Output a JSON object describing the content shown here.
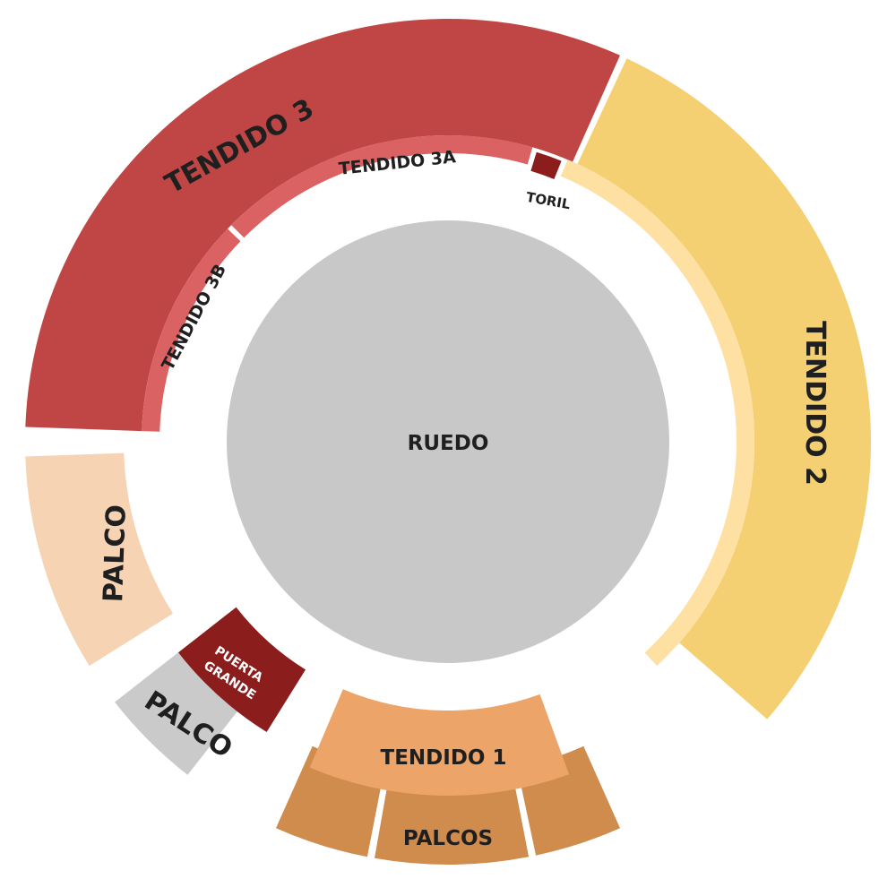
{
  "sections": {
    "ruedo": {
      "label": "RUEDO",
      "color": "#c8c8c8"
    },
    "tendido_3": {
      "label": "TENDIDO 3",
      "color": "#c04646"
    },
    "tendido_2": {
      "label": "TENDIDO 2",
      "color": "#f5d073"
    },
    "tendido_3a": {
      "label": "TENDIDO 3A",
      "color": "#db6262"
    },
    "tendido_3b": {
      "label": "TENDIDO 3B",
      "color": "#db6262"
    },
    "tendido_2_inner": {
      "color": "#fde0a2"
    },
    "toril": {
      "label": "TORIL",
      "color": "#8b1d1d"
    },
    "palco_left": {
      "label": "PALCO",
      "color": "#f6d3b3"
    },
    "palco_lower": {
      "label": "PALCO",
      "color": "#cacaca"
    },
    "puerta_grande": {
      "label_line1": "PUERTA",
      "label_line2": "GRANDE",
      "color": "#8b1d1d"
    },
    "tendido_1": {
      "label": "TENDIDO 1",
      "color": "#eca468"
    },
    "palcos": {
      "label": "PALCOS",
      "color": "#cf8c4d"
    }
  }
}
